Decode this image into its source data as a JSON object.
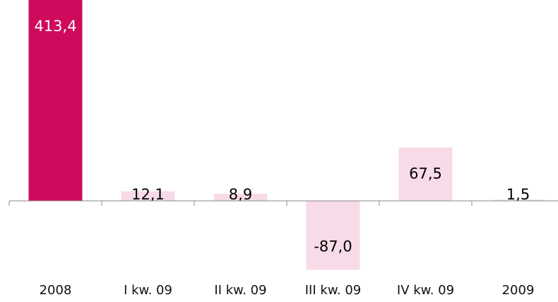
{
  "chart_data": {
    "type": "bar",
    "categories": [
      "2008",
      "I kw. 09",
      "II kw. 09",
      "III kw. 09",
      "IV kw. 09",
      "2009"
    ],
    "values": [
      413.4,
      12.1,
      8.9,
      -87.0,
      67.5,
      1.5
    ],
    "value_labels": [
      "413,4",
      "12,1",
      "8,9",
      "-87,0",
      "67,5",
      "1,5"
    ],
    "colors": [
      "#cf0a5c",
      "#f8dbe8",
      "#f8dbe8",
      "#f8dbe8",
      "#f8dbe8",
      "#f8dbe8"
    ]
  }
}
